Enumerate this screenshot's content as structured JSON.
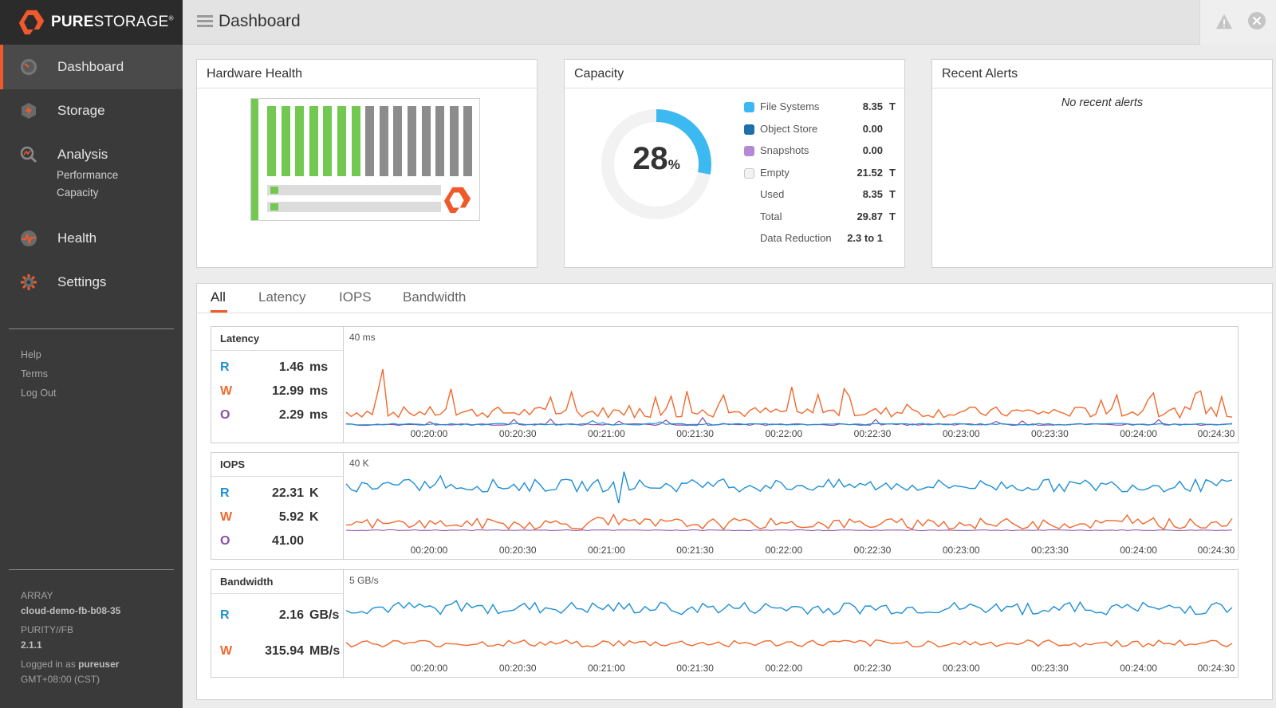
{
  "brand": {
    "name_bold": "PURE",
    "name_rest": "STORAGE",
    "trademark": "®"
  },
  "sidebar": {
    "nav": [
      {
        "label": "Dashboard",
        "icon": "dashboard-gauge-icon",
        "active": true
      },
      {
        "label": "Storage",
        "icon": "storage-bolt-icon"
      },
      {
        "label": "Analysis",
        "icon": "analysis-magnifier-icon",
        "sub": [
          "Performance",
          "Capacity"
        ]
      },
      {
        "label": "Health",
        "icon": "health-pulse-icon"
      },
      {
        "label": "Settings",
        "icon": "settings-gear-icon"
      }
    ],
    "links": [
      "Help",
      "Terms",
      "Log Out"
    ],
    "array_label": "ARRAY",
    "array_name": "cloud-demo-fb-b08-35",
    "purity_label": "PURITY//FB",
    "purity_version": "2.1.1",
    "logged_in_prefix": "Logged in as",
    "logged_in_user": "pureuser",
    "timezone": "GMT+08:00 (CST)"
  },
  "topbar": {
    "title": "Dashboard",
    "icons": [
      "menu-icon",
      "warning-icon",
      "close-icon"
    ]
  },
  "hardware": {
    "title": "Hardware Health",
    "slots_healthy": 7,
    "slots_total": 15
  },
  "capacity": {
    "title": "Capacity",
    "percent": "28",
    "percent_sign": "%",
    "used_fraction": 0.28,
    "legend": [
      {
        "name": "File Systems",
        "value": "8.35",
        "unit": "T",
        "color": "#3cb9f0"
      },
      {
        "name": "Object Store",
        "value": "0.00",
        "unit": "",
        "color": "#1f6fa8"
      },
      {
        "name": "Snapshots",
        "value": "0.00",
        "unit": "",
        "color": "#b48ad6"
      },
      {
        "name": "Empty",
        "value": "21.52",
        "unit": "T",
        "color": "#f2f2f2"
      },
      {
        "name": "Used",
        "value": "8.35",
        "unit": "T"
      },
      {
        "name": "Total",
        "value": "29.87",
        "unit": "T"
      },
      {
        "name": "Data Reduction",
        "value": "2.3 to 1",
        "unit": ""
      }
    ]
  },
  "alerts": {
    "title": "Recent Alerts",
    "empty_text": "No recent alerts"
  },
  "performance": {
    "tabs": [
      "All",
      "Latency",
      "IOPS",
      "Bandwidth"
    ],
    "active_tab": "All",
    "time_ticks": [
      "00:20:00",
      "00:20:30",
      "00:21:00",
      "00:21:30",
      "00:22:00",
      "00:22:30",
      "00:23:00",
      "00:23:30",
      "00:24:00",
      "00:24:30"
    ],
    "colors": {
      "read": "#1e8fd6",
      "write": "#f0692d",
      "other": "#8a4fa8"
    },
    "charts": [
      {
        "title": "Latency",
        "scale": "40 ms",
        "metrics": [
          {
            "key": "R",
            "value": "1.46",
            "unit": "ms"
          },
          {
            "key": "W",
            "value": "12.99",
            "unit": "ms"
          },
          {
            "key": "O",
            "value": "2.29",
            "unit": "ms"
          }
        ]
      },
      {
        "title": "IOPS",
        "scale": "40 K",
        "metrics": [
          {
            "key": "R",
            "value": "22.31",
            "unit": "K"
          },
          {
            "key": "W",
            "value": "5.92",
            "unit": "K"
          },
          {
            "key": "O",
            "value": "41.00",
            "unit": ""
          }
        ]
      },
      {
        "title": "Bandwidth",
        "scale": "5 GB/s",
        "metrics": [
          {
            "key": "R",
            "value": "2.16",
            "unit": "GB/s"
          },
          {
            "key": "W",
            "value": "315.94",
            "unit": "MB/s"
          }
        ]
      }
    ]
  }
}
